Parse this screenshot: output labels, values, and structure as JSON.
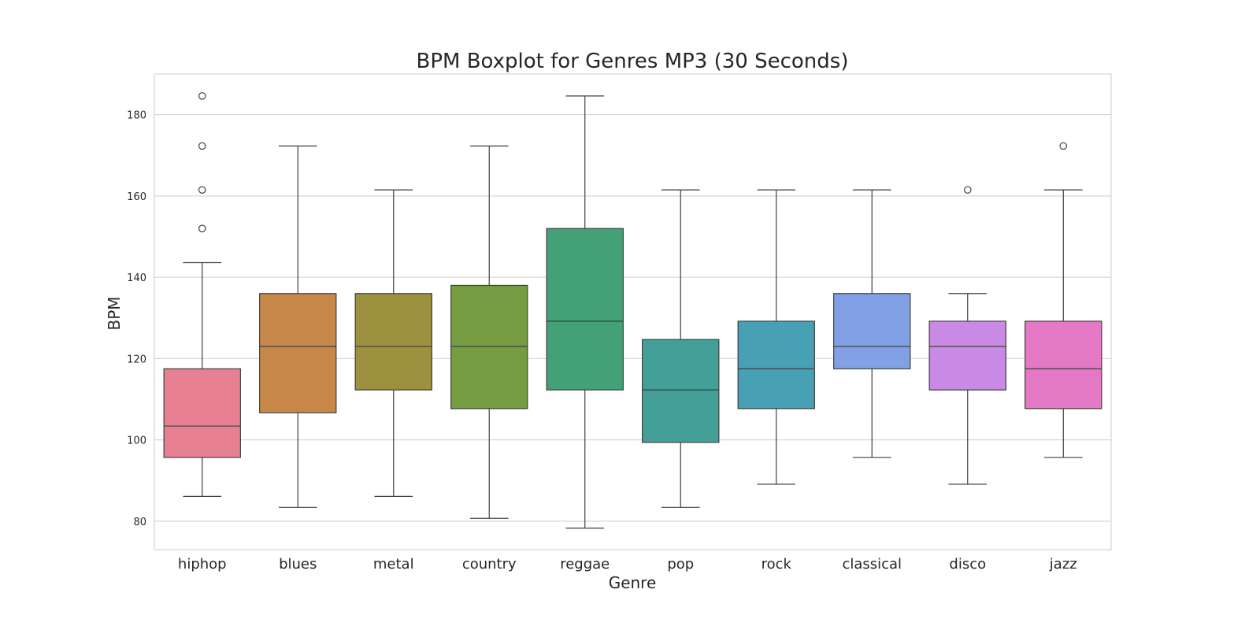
{
  "chart_data": {
    "type": "boxplot",
    "title": "BPM Boxplot for Genres MP3 (30 Seconds)",
    "xlabel": "Genre",
    "ylabel": "BPM",
    "ylim": [
      73,
      190
    ],
    "yticks": [
      80,
      100,
      120,
      140,
      160,
      180
    ],
    "grid": "horizontal",
    "categories": [
      "hiphop",
      "blues",
      "metal",
      "country",
      "reggae",
      "pop",
      "rock",
      "classical",
      "disco",
      "jazz"
    ],
    "colors": [
      "#e88093",
      "#c68749",
      "#9d913f",
      "#769c41",
      "#42a177",
      "#43a098",
      "#47a0b3",
      "#81a0e6",
      "#c98ae6",
      "#e47ac6"
    ],
    "boxes": [
      {
        "whislo": 86.1,
        "q1": 95.7,
        "med": 103.4,
        "q3": 117.5,
        "whishi": 143.6,
        "fliers": [
          152.0,
          161.5,
          172.3,
          184.6
        ]
      },
      {
        "whislo": 83.4,
        "q1": 106.7,
        "med": 123.0,
        "q3": 136.0,
        "whishi": 172.3,
        "fliers": []
      },
      {
        "whislo": 86.1,
        "q1": 112.3,
        "med": 123.0,
        "q3": 136.0,
        "whishi": 161.5,
        "fliers": []
      },
      {
        "whislo": 80.7,
        "q1": 107.7,
        "med": 123.0,
        "q3": 138.0,
        "whishi": 172.3,
        "fliers": []
      },
      {
        "whislo": 78.3,
        "q1": 112.3,
        "med": 129.2,
        "q3": 152.0,
        "whishi": 184.6,
        "fliers": []
      },
      {
        "whislo": 83.4,
        "q1": 99.4,
        "med": 112.3,
        "q3": 124.7,
        "whishi": 161.5,
        "fliers": []
      },
      {
        "whislo": 89.1,
        "q1": 107.7,
        "med": 117.5,
        "q3": 129.2,
        "whishi": 161.5,
        "fliers": []
      },
      {
        "whislo": 95.7,
        "q1": 117.5,
        "med": 123.0,
        "q3": 136.0,
        "whishi": 161.5,
        "fliers": []
      },
      {
        "whislo": 89.1,
        "q1": 112.3,
        "med": 123.0,
        "q3": 129.2,
        "whishi": 136.0,
        "fliers": [
          161.5
        ]
      },
      {
        "whislo": 95.7,
        "q1": 107.7,
        "med": 117.5,
        "q3": 129.2,
        "whishi": 161.5,
        "fliers": [
          172.3
        ]
      }
    ]
  }
}
